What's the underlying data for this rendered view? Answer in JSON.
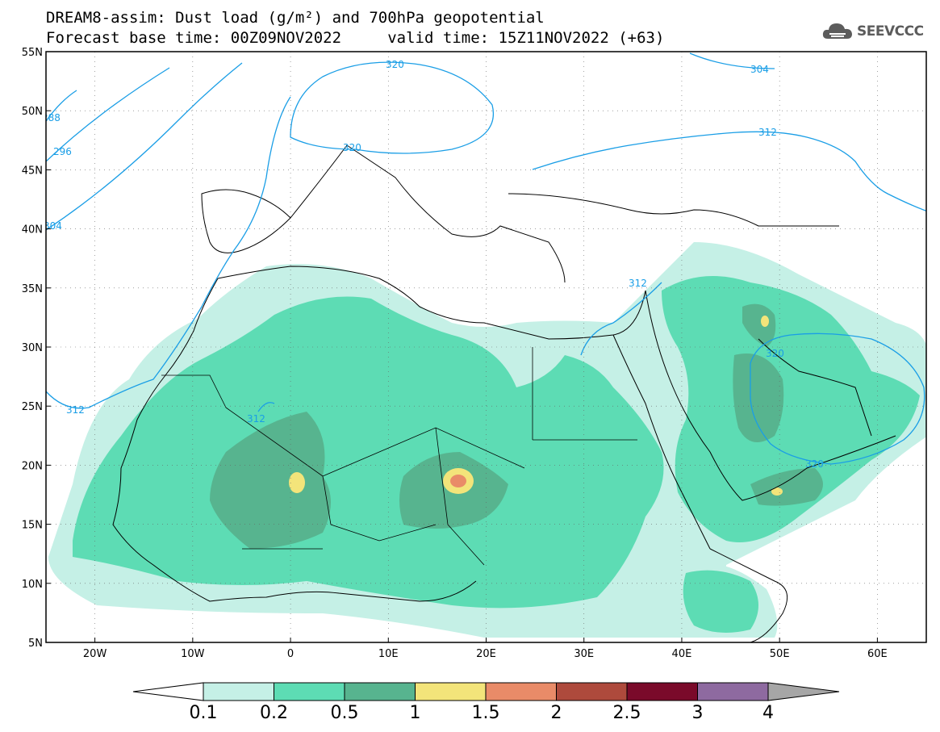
{
  "header": {
    "title_line1": "DREAM8-assim: Dust load (g/m²) and 700hPa geopotential",
    "title_line2": "Forecast base time: 00Z09NOV2022     valid time: 15Z11NOV2022 (+63)",
    "logo_text": "SEEVCCC"
  },
  "map": {
    "lon_range": [
      -25,
      65
    ],
    "lat_range": [
      5,
      55
    ],
    "lon_ticks": [
      "20W",
      "10W",
      "0",
      "10E",
      "20E",
      "30E",
      "40E",
      "50E",
      "60E"
    ],
    "lat_ticks": [
      "55N",
      "50N",
      "45N",
      "40N",
      "35N",
      "30N",
      "25N",
      "20N",
      "15N",
      "10N",
      "5N"
    ],
    "contour_labels": [
      "320",
      "320",
      "304",
      "312",
      "288",
      "296",
      "304",
      "312",
      "312",
      "312",
      "320",
      "320"
    ],
    "colors": {
      "contour": "#1a9ee6",
      "dust_0_1": "#c5f0e6",
      "dust_0_2": "#5ddcb4",
      "dust_0_5": "#57b48f",
      "dust_1": "#f3e47a",
      "dust_1_5": "#e98b68"
    }
  },
  "colorbar": {
    "labels": [
      "0.1",
      "0.2",
      "0.5",
      "1",
      "1.5",
      "2",
      "2.5",
      "3",
      "4"
    ],
    "colors": [
      "#ffffff",
      "#c5f0e6",
      "#5ddcb4",
      "#57b48f",
      "#f3e47a",
      "#e98b68",
      "#ae4a3c",
      "#7a0a2a",
      "#8e6aa0",
      "#a6a6a6"
    ]
  }
}
